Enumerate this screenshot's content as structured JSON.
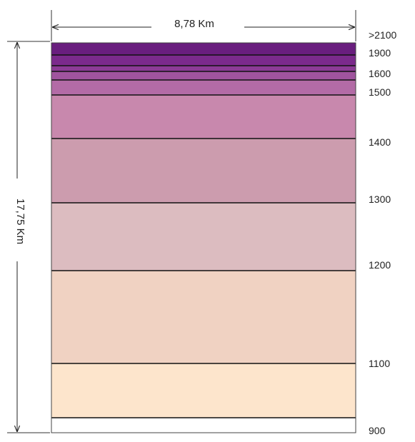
{
  "diagram": {
    "width_label": "8,78 Km",
    "height_label": "17,75 Km",
    "bands": [
      {
        "color": "#ffffff"
      },
      {
        "color": "#fde5cc"
      },
      {
        "color": "#f0d2c2"
      },
      {
        "color": "#dcbcc0"
      },
      {
        "color": "#cc9cae"
      },
      {
        "color": "#c888ad"
      },
      {
        "color": "#b36ba6"
      },
      {
        "color": "#a0549e"
      },
      {
        "color": "#8c3b96"
      },
      {
        "color": "#7b2a8c"
      },
      {
        "color": "#691e7e"
      }
    ],
    "levels": [
      ">2100",
      "1900",
      "1600",
      "1500",
      "1400",
      "1300",
      "1200",
      "1100",
      "900"
    ]
  }
}
